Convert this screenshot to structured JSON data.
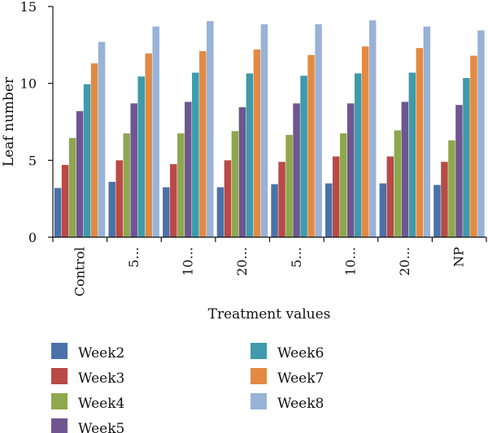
{
  "chart_data": {
    "type": "bar",
    "xlabel": "Treatment values",
    "ylabel": "Leaf number",
    "ylim": [
      0,
      15
    ],
    "yticks": [
      0,
      5,
      10,
      15
    ],
    "categories": [
      "Control",
      "5...",
      "10...",
      "20...",
      "5...",
      "10...",
      "20...",
      "NP"
    ],
    "series": [
      {
        "name": "Week2",
        "color": "#4a72a8",
        "values": [
          3.2,
          3.6,
          3.25,
          3.25,
          3.45,
          3.5,
          3.5,
          3.4
        ]
      },
      {
        "name": "Week3",
        "color": "#b84a48",
        "values": [
          4.7,
          5.0,
          4.75,
          5.0,
          4.9,
          5.25,
          5.25,
          4.9
        ]
      },
      {
        "name": "Week4",
        "color": "#8ea84e",
        "values": [
          6.45,
          6.75,
          6.75,
          6.9,
          6.65,
          6.75,
          6.95,
          6.3
        ]
      },
      {
        "name": "Week5",
        "color": "#6f5690",
        "values": [
          8.2,
          8.7,
          8.8,
          8.45,
          8.7,
          8.7,
          8.8,
          8.6
        ]
      },
      {
        "name": "Week6",
        "color": "#3f9aab",
        "values": [
          9.95,
          10.45,
          10.7,
          10.65,
          10.5,
          10.65,
          10.7,
          10.35
        ]
      },
      {
        "name": "Week7",
        "color": "#e28a42",
        "values": [
          11.3,
          11.95,
          12.1,
          12.2,
          11.85,
          12.4,
          12.3,
          11.8
        ]
      },
      {
        "name": "Week8",
        "color": "#98b2d8",
        "values": [
          12.7,
          13.7,
          14.05,
          13.85,
          13.85,
          14.1,
          13.7,
          13.45
        ]
      }
    ],
    "legend_position": "bottom",
    "grid": false
  }
}
